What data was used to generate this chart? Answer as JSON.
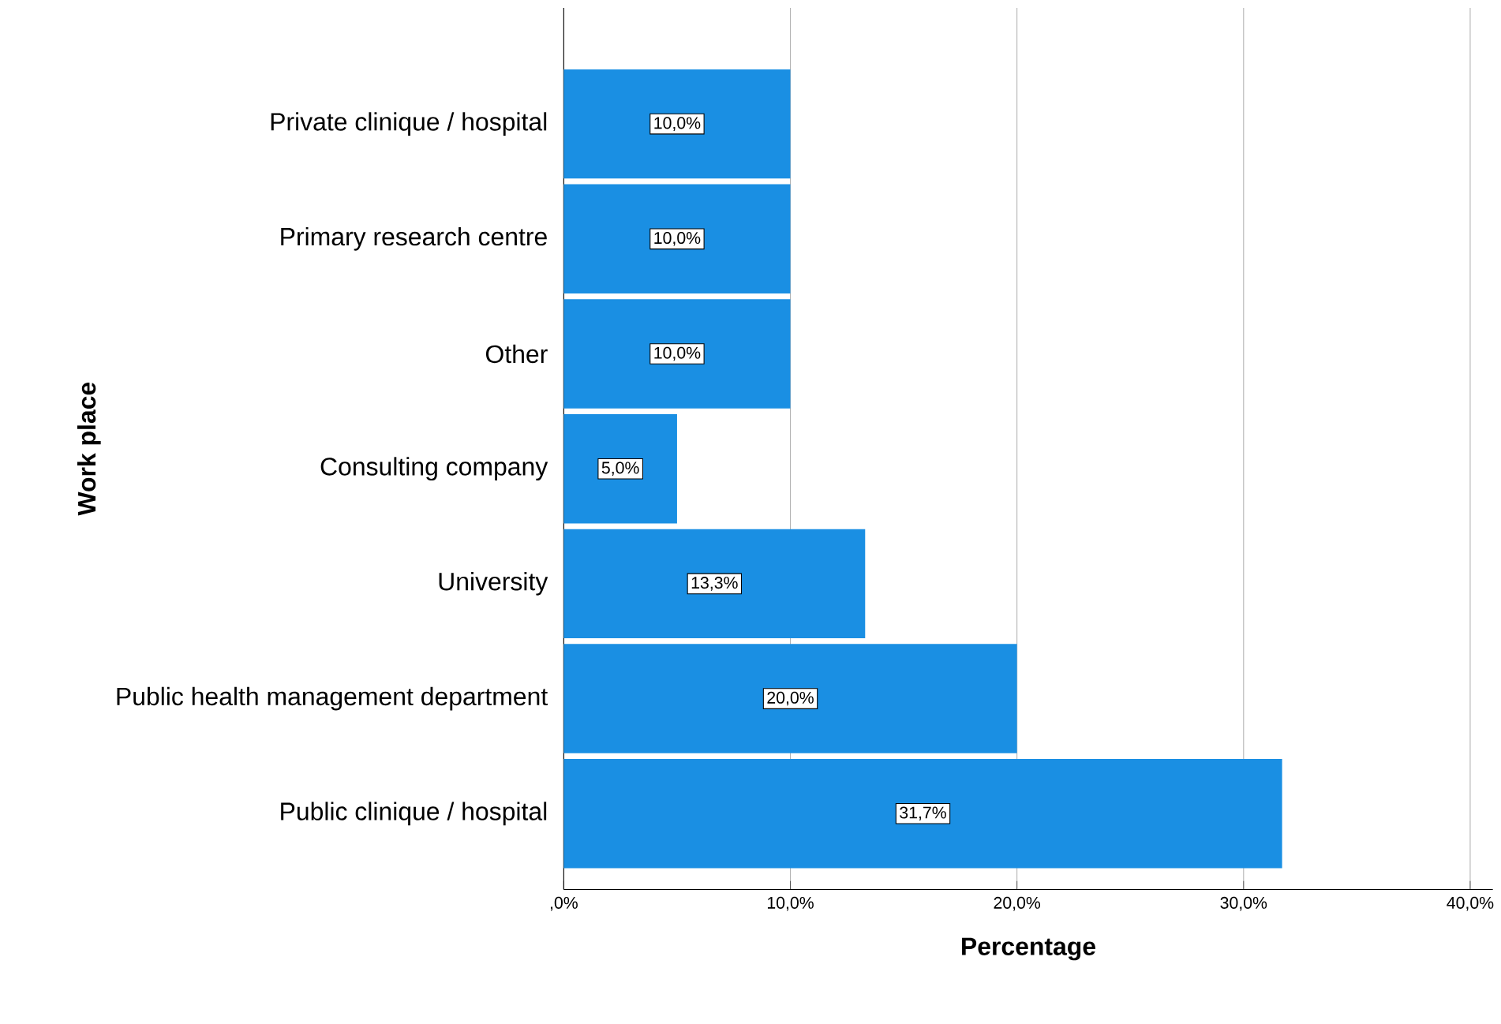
{
  "chart_data": {
    "type": "bar",
    "orientation": "horizontal",
    "xlabel": "Percentage",
    "ylabel": "Work place",
    "categories": [
      "Private clinique / hospital",
      "Primary research centre",
      "Other",
      "Consulting company",
      "University",
      "Public health management department",
      "Public clinique / hospital"
    ],
    "values": [
      10,
      10,
      10,
      5,
      13.3,
      20,
      31.7
    ],
    "value_labels": [
      "10,0%",
      "10,0%",
      "10,0%",
      "5,0%",
      "13,3%",
      "20,0%",
      "31,7%"
    ],
    "color": "#1a8fe3",
    "xlim": [
      0,
      41
    ],
    "xticks": [
      {
        "value": 0,
        "label": ",0%"
      },
      {
        "value": 10,
        "label": "10,0%"
      },
      {
        "value": 20,
        "label": "20,0%"
      },
      {
        "value": 30,
        "label": "30,0%"
      },
      {
        "value": 40,
        "label": "40,0%"
      }
    ],
    "grid": "x"
  }
}
